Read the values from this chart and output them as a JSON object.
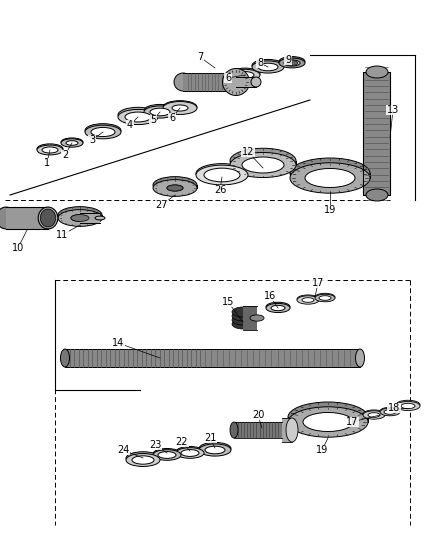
{
  "bg_color": "#ffffff",
  "lc": "#000000",
  "gray1": "#cccccc",
  "gray2": "#aaaaaa",
  "gray3": "#888888",
  "gray4": "#555555",
  "gray5": "#333333",
  "chain_gray": "#777777",
  "labels_upper": [
    [
      "1",
      47,
      155
    ],
    [
      "2",
      65,
      148
    ],
    [
      "3",
      95,
      132
    ],
    [
      "4",
      132,
      118
    ],
    [
      "5",
      155,
      112
    ],
    [
      "6",
      175,
      110
    ],
    [
      "6",
      228,
      72
    ],
    [
      "7",
      200,
      55
    ],
    [
      "8",
      260,
      60
    ],
    [
      "9",
      288,
      58
    ],
    [
      "10",
      20,
      238
    ],
    [
      "11",
      65,
      228
    ],
    [
      "12",
      250,
      170
    ],
    [
      "13",
      390,
      108
    ],
    [
      "19",
      328,
      222
    ],
    [
      "26",
      218,
      185
    ],
    [
      "27",
      165,
      198
    ]
  ],
  "labels_lower": [
    [
      "14",
      118,
      348
    ],
    [
      "15",
      232,
      302
    ],
    [
      "16",
      268,
      300
    ],
    [
      "17",
      318,
      286
    ],
    [
      "17",
      352,
      418
    ],
    [
      "18",
      394,
      406
    ],
    [
      "19",
      322,
      450
    ],
    [
      "20",
      260,
      432
    ],
    [
      "21",
      208,
      452
    ],
    [
      "22",
      182,
      455
    ],
    [
      "23",
      155,
      458
    ],
    [
      "24",
      125,
      462
    ]
  ]
}
